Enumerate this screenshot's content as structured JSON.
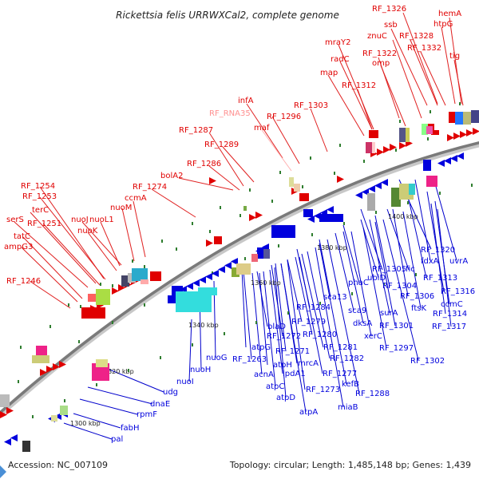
{
  "title": "Rickettsia felis URRWXCal2, complete genome",
  "footer": {
    "accession": "Accession: NC_007109",
    "summary": "Topology: circular; Length: 1,485,148 bp; Genes: 1,439"
  },
  "colors": {
    "forward": "#e00000",
    "reverse": "#0000dd",
    "rna": "#ff9090",
    "backbone": "#8a8a8a",
    "tick": "#2e7d2e"
  },
  "scale_labels": [
    "1300 kbp",
    "1320 kbp",
    "1340 kbp",
    "1360 kbp",
    "1380 kbp",
    "1400 kbp"
  ],
  "labels_red": [
    "RF_1326",
    "hemA",
    "ssb",
    "htpG",
    "znuC",
    "RF_1328",
    "RF_1322",
    "RF_1332",
    "mraY2",
    "omp",
    "tig",
    "radC",
    "map",
    "RF_1312",
    "infA",
    "RF_1303",
    "RF_RNA35",
    "RF_1296",
    "maf",
    "RF_1287",
    "RF_1289",
    "RF_1286",
    "bolA2",
    "RF_1274",
    "ccmA",
    "RF_1254",
    "RF_1253",
    "nuoM",
    "terC",
    "nuoJ",
    "nuoL1",
    "serS",
    "RF_1251",
    "nuoK",
    "tatC",
    "ampG3",
    "RF_1246"
  ],
  "labels_blue": [
    "RF_1320",
    "uvrA",
    "fdxA",
    "RF_1305",
    "fic",
    "RF_1313",
    "phaC",
    "ubiD",
    "RF_1304",
    "RF_1316",
    "RF_1306",
    "ccmC",
    "sca13",
    "ftsK",
    "RF_1314",
    "RF_1284",
    "sca9",
    "surA",
    "RF_1317",
    "dksA",
    "RF_1301",
    "blaD",
    "RF_1279",
    "RF_1272",
    "RF_1280",
    "xerC",
    "atpG",
    "RF_1271",
    "RF_1281",
    "RF_1297",
    "nuoG",
    "RF_1263",
    "atpH",
    "mrcA",
    "RF_1282",
    "RF_1302",
    "nuoH",
    "lpdA1",
    "RF_1277",
    "acnA",
    "kefB",
    "nuoI",
    "atpC",
    "RF_1273",
    "RF_1288",
    "atpD",
    "miaB",
    "udg",
    "atpA",
    "dnaE",
    "rpmF",
    "fabH",
    "pal"
  ]
}
